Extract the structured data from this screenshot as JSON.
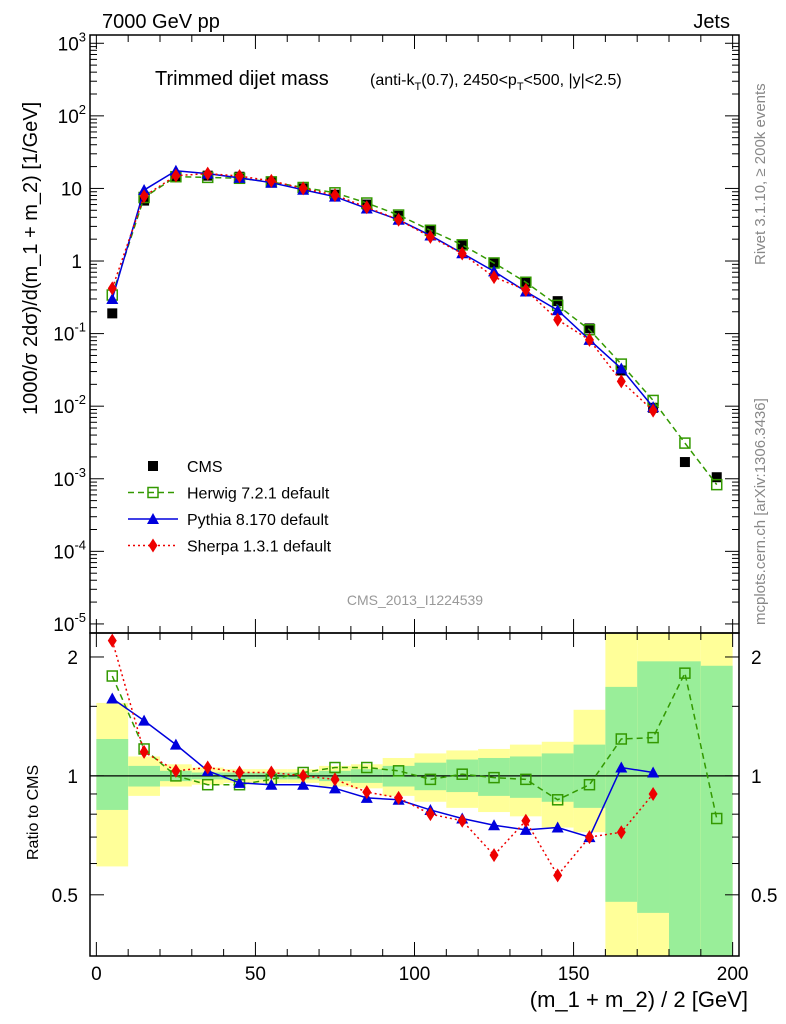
{
  "header": {
    "left": "7000 GeV pp",
    "right": "Jets"
  },
  "side_labels": {
    "rivet": "Rivet 3.1.10, ≥ 200k events",
    "mcplots": "mcplots.cern.ch [arXiv:1306.3436]"
  },
  "chart_data": {
    "type": "scatter",
    "title": "Trimmed dijet mass",
    "subtitle_parts": [
      "(anti-k",
      "T",
      "(0.7), 2450<p",
      "T",
      "<500, |y|<2.5)"
    ],
    "analysis_id": "CMS_2013_I1224539",
    "xlabel": "(m_1 + m_2) / 2 [GeV]",
    "ylabel_main": "1000/σ 2dσ)/d(m_1 + m_2) [1/GeV]",
    "ylabel_ratio": "Ratio to CMS",
    "xlim": [
      -2,
      202
    ],
    "ylim_main": [
      7.5e-06,
      1300
    ],
    "ylog_main": true,
    "ylim_ratio": [
      0.35,
      2.3
    ],
    "ylog_ratio": true,
    "x_ticks": [
      "0",
      "50",
      "100",
      "150",
      "200"
    ],
    "y_ticks_main": [
      "10^-5",
      "10^-4",
      "10^-3",
      "10^-2",
      "10^-1",
      "1",
      "10",
      "10^2",
      "10^3"
    ],
    "y_ticks_ratio": [
      "0.5",
      "1",
      "2"
    ],
    "x": [
      5,
      15,
      25,
      35,
      45,
      55,
      65,
      75,
      85,
      95,
      105,
      115,
      125,
      135,
      145,
      155,
      165,
      175,
      185,
      195
    ],
    "series": [
      {
        "name": "CMS",
        "color": "#000000",
        "marker": "square",
        "values": [
          0.19,
          6.8,
          14.5,
          15.0,
          14.5,
          12.5,
          10.0,
          8.2,
          6.0,
          4.2,
          2.7,
          1.65,
          0.95,
          0.52,
          0.28,
          0.118,
          0.031,
          0.0095,
          0.0017,
          0.00105
        ]
      },
      {
        "name": "Herwig 7.2.1 default",
        "color": "#339900",
        "marker": "open-square",
        "line": "dashed",
        "values": [
          0.34,
          7.5,
          14.5,
          14.2,
          13.8,
          12.3,
          10.3,
          8.7,
          6.3,
          4.3,
          2.65,
          1.67,
          0.94,
          0.51,
          0.245,
          0.113,
          0.038,
          0.012,
          0.0031,
          0.00083
        ]
      },
      {
        "name": "Pythia 8.170 default",
        "color": "#0000dd",
        "marker": "triangle",
        "line": "solid",
        "values": [
          0.3,
          9.5,
          17.5,
          16.0,
          14.0,
          12.0,
          9.6,
          7.7,
          5.3,
          3.7,
          2.25,
          1.28,
          0.72,
          0.38,
          0.21,
          0.082,
          0.033,
          0.0097
        ]
      },
      {
        "name": "Sherpa 1.3.1 default",
        "color": "#ee0000",
        "marker": "diamond",
        "line": "dotted",
        "values": [
          0.42,
          7.8,
          15.0,
          16.0,
          14.8,
          12.7,
          10.0,
          8.1,
          5.5,
          3.7,
          2.15,
          1.27,
          0.6,
          0.4,
          0.155,
          0.082,
          0.022,
          0.0087
        ]
      }
    ],
    "ratio": {
      "herwig": [
        1.79,
        1.17,
        1.0,
        0.95,
        0.95,
        0.98,
        1.02,
        1.05,
        1.05,
        1.03,
        0.98,
        1.01,
        0.99,
        0.98,
        0.87,
        0.95,
        1.24,
        1.25,
        1.82,
        0.78
      ],
      "pythia": [
        1.57,
        1.38,
        1.2,
        1.03,
        0.96,
        0.95,
        0.95,
        0.93,
        0.88,
        0.87,
        0.82,
        0.78,
        0.75,
        0.73,
        0.74,
        0.7,
        1.05,
        1.02
      ],
      "sherpa": [
        2.2,
        1.15,
        1.03,
        1.05,
        1.02,
        1.02,
        1.0,
        0.98,
        0.91,
        0.88,
        0.8,
        0.77,
        0.63,
        0.77,
        0.56,
        0.7,
        0.72,
        0.9
      ]
    },
    "bands": {
      "edges": [
        0,
        10,
        20,
        30,
        40,
        50,
        60,
        70,
        80,
        90,
        100,
        110,
        120,
        130,
        140,
        150,
        160,
        170,
        180,
        190,
        200
      ],
      "yellow_lo": [
        0.59,
        0.89,
        0.94,
        0.95,
        0.96,
        0.96,
        0.96,
        0.94,
        0.93,
        0.89,
        0.86,
        0.83,
        0.81,
        0.79,
        0.74,
        0.72,
        0.35,
        0.35,
        0.35,
        0.35
      ],
      "yellow_hi": [
        1.53,
        1.12,
        1.07,
        1.05,
        1.04,
        1.04,
        1.04,
        1.06,
        1.07,
        1.11,
        1.14,
        1.16,
        1.17,
        1.2,
        1.22,
        1.47,
        2.3,
        2.3,
        2.3,
        2.3
      ],
      "green_lo": [
        0.82,
        0.94,
        0.97,
        0.98,
        0.98,
        0.98,
        0.98,
        0.97,
        0.96,
        0.94,
        0.92,
        0.91,
        0.89,
        0.88,
        0.86,
        0.83,
        0.48,
        0.45,
        0.35,
        0.35
      ],
      "green_hi": [
        1.24,
        1.06,
        1.03,
        1.02,
        1.02,
        1.02,
        1.02,
        1.03,
        1.04,
        1.06,
        1.08,
        1.1,
        1.11,
        1.12,
        1.14,
        1.2,
        1.68,
        1.95,
        1.95,
        1.9
      ]
    },
    "legend_placement": "lower-left"
  }
}
